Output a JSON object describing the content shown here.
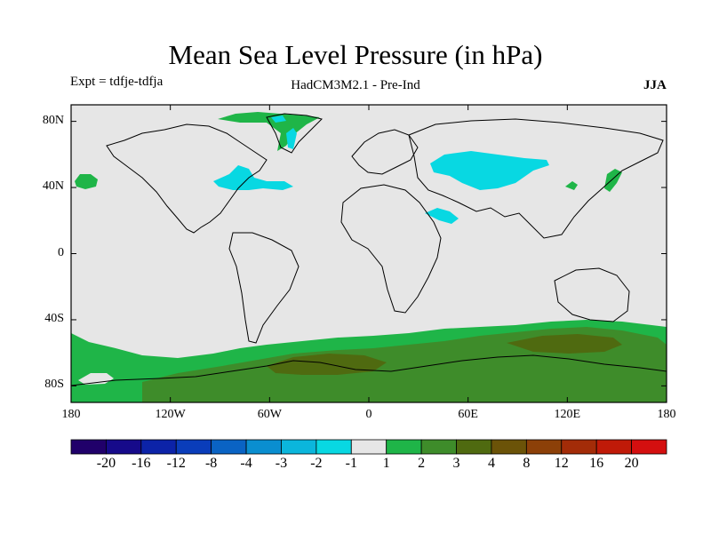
{
  "title": "Mean Sea Level Pressure (in hPa)",
  "left_label": "Expt = tdfje-tdfja",
  "center_label": "HadCM3M2.1 - Pre-Ind",
  "right_label": "JJA",
  "map": {
    "lon_range": [
      -180,
      180
    ],
    "lat_range": [
      -90,
      90
    ],
    "background_color": "#e6e6e6",
    "lat_ticks": [
      {
        "lat": 80,
        "label": "80N"
      },
      {
        "lat": 40,
        "label": "40N"
      },
      {
        "lat": 0,
        "label": "0"
      },
      {
        "lat": -40,
        "label": "40S"
      },
      {
        "lat": -80,
        "label": "80S"
      }
    ],
    "lon_ticks": [
      {
        "lon": -180,
        "label": "180"
      },
      {
        "lon": -120,
        "label": "120W"
      },
      {
        "lon": -60,
        "label": "60W"
      },
      {
        "lon": 0,
        "label": "0"
      },
      {
        "lon": 60,
        "label": "60E"
      },
      {
        "lon": 120,
        "label": "120E"
      },
      {
        "lon": 180,
        "label": "180"
      }
    ]
  },
  "colorbar": {
    "colors": [
      "#20006a",
      "#160a8a",
      "#0c23a8",
      "#0a3dba",
      "#0a63c4",
      "#0a8ed0",
      "#0bb6dc",
      "#08d8e2",
      "#e6e6e6",
      "#1fb548",
      "#3e8c2a",
      "#4f6a10",
      "#6b5308",
      "#8c4008",
      "#a32c08",
      "#c01a08",
      "#d40f0f"
    ],
    "labels": [
      "-20",
      "-16",
      "-12",
      "-8",
      "-4",
      "-3",
      "-2",
      "-1",
      "1",
      "2",
      "3",
      "4",
      "8",
      "12",
      "16",
      "20"
    ]
  }
}
